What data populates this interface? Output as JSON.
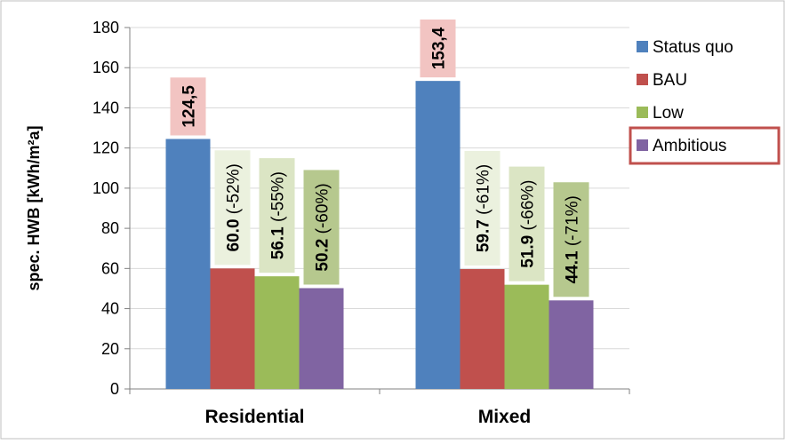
{
  "chart_data": {
    "type": "bar",
    "categories": [
      "Residential",
      "Mixed"
    ],
    "series": [
      {
        "name": "Status quo",
        "values": [
          124.5,
          153.4
        ],
        "color": "#4f81bd",
        "labels": [
          "124,5",
          "153,4"
        ],
        "label_bg": "#f2c4c2"
      },
      {
        "name": "BAU",
        "values": [
          60.0,
          59.7
        ],
        "color": "#c0504d",
        "labels": [
          "60.0 (-52%)",
          "59.7 (-61%)"
        ],
        "label_bg": "#ebf1de"
      },
      {
        "name": "Low",
        "values": [
          56.1,
          51.9
        ],
        "color": "#9bbb59",
        "labels": [
          "56.1 (-55%)",
          "51.9 (-66%)"
        ],
        "label_bg": "#dbe5c4"
      },
      {
        "name": "Ambitious",
        "values": [
          50.2,
          44.1
        ],
        "color": "#8064a2",
        "labels": [
          "50.2 (-60%)",
          "44.1 (-71%)"
        ],
        "label_bg": "#b6c88e"
      }
    ],
    "xlabel": "",
    "ylabel": "spec. HWB [kWh/m²a]",
    "ylim": [
      0,
      180
    ],
    "yticks": [
      0,
      20,
      40,
      60,
      80,
      100,
      120,
      140,
      160,
      180
    ],
    "grid": true,
    "legend_position": "right",
    "legend_highlight": "Ambitious",
    "legend_highlight_color": "#c0504d"
  }
}
